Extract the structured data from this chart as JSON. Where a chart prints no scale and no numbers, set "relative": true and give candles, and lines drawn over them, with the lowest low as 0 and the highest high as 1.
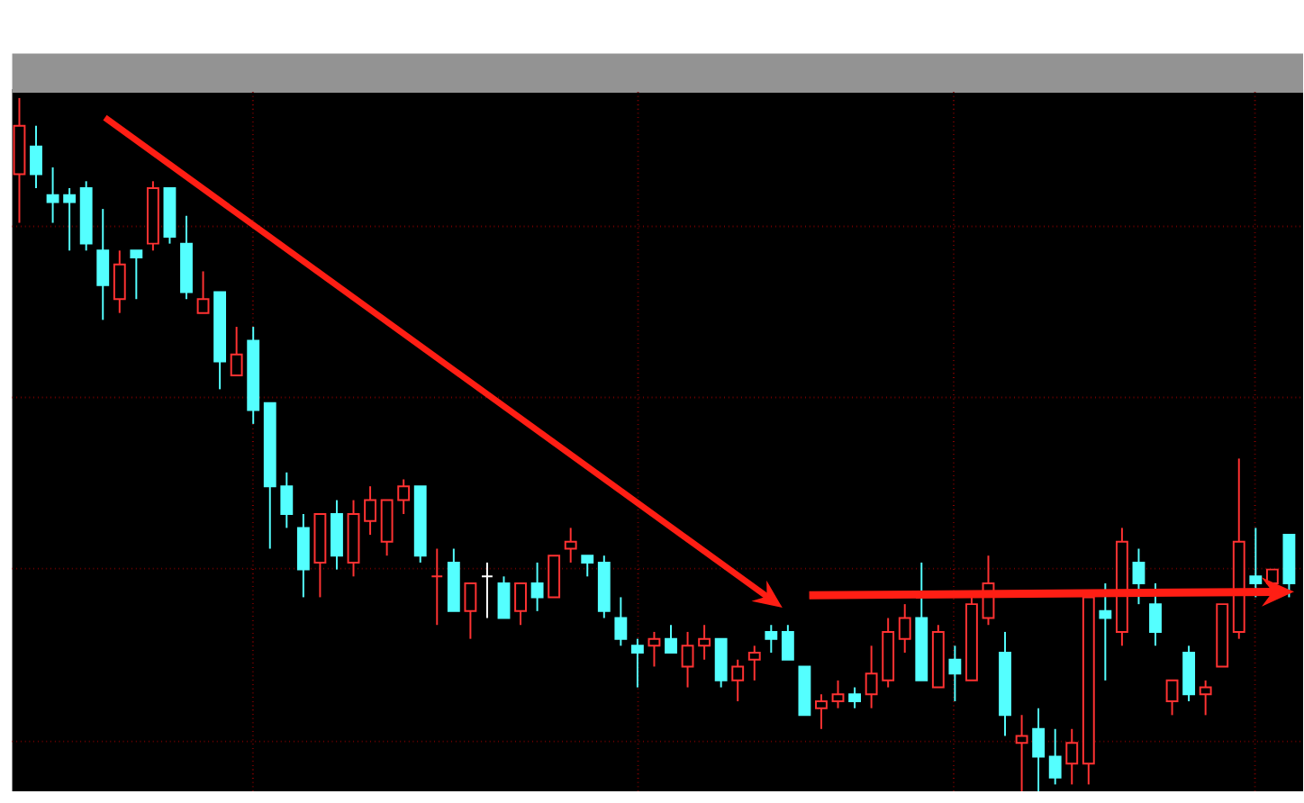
{
  "chart_data": {
    "type": "candlestick",
    "relative": true,
    "grid": true,
    "categories": [
      null,
      null,
      null,
      null,
      null,
      null,
      null,
      null,
      null,
      null,
      null,
      null,
      null,
      null,
      null,
      null,
      null,
      null,
      null,
      null,
      null,
      null,
      null,
      null,
      null,
      null,
      null,
      null,
      null,
      null,
      null,
      null,
      null,
      null,
      null,
      null,
      null,
      null,
      null,
      null,
      null,
      null,
      null,
      null,
      null,
      null,
      null,
      null,
      null,
      null,
      null,
      null,
      null,
      null,
      null,
      null,
      null,
      null,
      null,
      null,
      null,
      null,
      null,
      null,
      null,
      null,
      null,
      null,
      null,
      null,
      null,
      null,
      null,
      null,
      null,
      null,
      null
    ],
    "ohlc": [
      [
        0.89,
        1.0,
        0.82,
        0.96
      ],
      [
        0.93,
        0.96,
        0.87,
        0.89
      ],
      [
        0.86,
        0.9,
        0.82,
        0.85
      ],
      [
        0.86,
        0.87,
        0.78,
        0.85
      ],
      [
        0.87,
        0.88,
        0.78,
        0.79
      ],
      [
        0.78,
        0.84,
        0.68,
        0.73
      ],
      [
        0.71,
        0.78,
        0.69,
        0.76
      ],
      [
        0.78,
        0.78,
        0.71,
        0.77
      ],
      [
        0.79,
        0.88,
        0.78,
        0.87
      ],
      [
        0.87,
        0.87,
        0.79,
        0.8
      ],
      [
        0.79,
        0.83,
        0.71,
        0.72
      ],
      [
        0.69,
        0.75,
        0.69,
        0.71
      ],
      [
        0.72,
        0.72,
        0.58,
        0.62
      ],
      [
        0.6,
        0.67,
        0.6,
        0.63
      ],
      [
        0.65,
        0.67,
        0.53,
        0.55
      ],
      [
        0.56,
        0.56,
        0.35,
        0.44
      ],
      [
        0.44,
        0.46,
        0.38,
        0.4
      ],
      [
        0.38,
        0.4,
        0.28,
        0.32
      ],
      [
        0.33,
        0.4,
        0.28,
        0.4
      ],
      [
        0.4,
        0.42,
        0.32,
        0.34
      ],
      [
        0.33,
        0.42,
        0.31,
        0.4
      ],
      [
        0.39,
        0.44,
        0.37,
        0.42
      ],
      [
        0.36,
        0.42,
        0.34,
        0.42
      ],
      [
        0.42,
        0.45,
        0.4,
        0.44
      ],
      [
        0.44,
        0.44,
        0.33,
        0.34
      ],
      [
        0.31,
        0.35,
        0.24,
        0.31
      ],
      [
        0.33,
        0.35,
        0.26,
        0.26
      ],
      [
        0.26,
        0.3,
        0.22,
        0.3
      ],
      [
        0.31,
        0.33,
        0.25,
        0.31
      ],
      [
        0.3,
        0.31,
        0.25,
        0.25
      ],
      [
        0.26,
        0.3,
        0.24,
        0.3
      ],
      [
        0.3,
        0.33,
        0.26,
        0.28
      ],
      [
        0.28,
        0.34,
        0.28,
        0.34
      ],
      [
        0.35,
        0.38,
        0.33,
        0.36
      ],
      [
        0.34,
        0.34,
        0.31,
        0.33
      ],
      [
        0.33,
        0.34,
        0.25,
        0.26
      ],
      [
        0.25,
        0.28,
        0.21,
        0.22
      ],
      [
        0.21,
        0.22,
        0.15,
        0.2
      ],
      [
        0.21,
        0.23,
        0.18,
        0.22
      ],
      [
        0.22,
        0.24,
        0.2,
        0.2
      ],
      [
        0.18,
        0.23,
        0.15,
        0.21
      ],
      [
        0.21,
        0.24,
        0.19,
        0.22
      ],
      [
        0.22,
        0.22,
        0.15,
        0.16
      ],
      [
        0.16,
        0.19,
        0.13,
        0.18
      ],
      [
        0.19,
        0.21,
        0.16,
        0.2
      ],
      [
        0.23,
        0.24,
        0.2,
        0.22
      ],
      [
        0.23,
        0.24,
        0.19,
        0.19
      ],
      [
        0.18,
        0.18,
        0.11,
        0.11
      ],
      [
        0.12,
        0.14,
        0.09,
        0.13
      ],
      [
        0.13,
        0.16,
        0.12,
        0.14
      ],
      [
        0.14,
        0.15,
        0.12,
        0.13
      ],
      [
        0.14,
        0.21,
        0.12,
        0.17
      ],
      [
        0.16,
        0.25,
        0.15,
        0.23
      ],
      [
        0.22,
        0.27,
        0.2,
        0.25
      ],
      [
        0.25,
        0.33,
        0.16,
        0.16
      ],
      [
        0.15,
        0.24,
        0.15,
        0.23
      ],
      [
        0.19,
        0.21,
        0.13,
        0.17
      ],
      [
        0.16,
        0.28,
        0.16,
        0.27
      ],
      [
        0.25,
        0.34,
        0.24,
        0.3
      ],
      [
        0.2,
        0.23,
        0.08,
        0.11
      ],
      [
        0.07,
        0.11,
        0.0,
        0.08
      ],
      [
        0.09,
        0.12,
        0.0,
        0.05
      ],
      [
        0.05,
        0.09,
        0.01,
        0.02
      ],
      [
        0.04,
        0.09,
        0.01,
        0.07
      ],
      [
        0.04,
        0.28,
        0.01,
        0.28
      ],
      [
        0.26,
        0.3,
        0.16,
        0.25
      ],
      [
        0.23,
        0.38,
        0.21,
        0.36
      ],
      [
        0.33,
        0.35,
        0.27,
        0.3
      ],
      [
        0.27,
        0.3,
        0.21,
        0.23
      ],
      [
        0.13,
        0.16,
        0.11,
        0.16
      ],
      [
        0.2,
        0.21,
        0.13,
        0.14
      ],
      [
        0.14,
        0.16,
        0.11,
        0.15
      ],
      [
        0.18,
        0.27,
        0.18,
        0.27
      ],
      [
        0.23,
        0.48,
        0.22,
        0.36
      ],
      [
        0.31,
        0.38,
        0.28,
        0.3
      ],
      [
        0.3,
        0.32,
        0.3,
        0.32
      ],
      [
        0.37,
        0.37,
        0.28,
        0.3
      ]
    ],
    "colors": [
      "#ff3232",
      "#54ffff",
      "#54ffff",
      "#54ffff",
      "#54ffff",
      "#54ffff",
      "#ff3232",
      "#54ffff",
      "#ff3232",
      "#54ffff",
      "#54ffff",
      "#ff3232",
      "#54ffff",
      "#ff3232",
      "#54ffff",
      "#54ffff",
      "#54ffff",
      "#54ffff",
      "#ff3232",
      "#54ffff",
      "#ff3232",
      "#ff3232",
      "#ff3232",
      "#ff3232",
      "#54ffff",
      "#ff3232",
      "#54ffff",
      "#ff3232",
      "#ffffff",
      "#54ffff",
      "#ff3232",
      "#54ffff",
      "#ff3232",
      "#ff3232",
      "#54ffff",
      "#54ffff",
      "#54ffff",
      "#54ffff",
      "#ff3232",
      "#54ffff",
      "#ff3232",
      "#ff3232",
      "#54ffff",
      "#ff3232",
      "#ff3232",
      "#54ffff",
      "#54ffff",
      "#54ffff",
      "#ff3232",
      "#ff3232",
      "#54ffff",
      "#ff3232",
      "#ff3232",
      "#ff3232",
      "#54ffff",
      "#ff3232",
      "#54ffff",
      "#ff3232",
      "#ff3232",
      "#54ffff",
      "#ff3232",
      "#54ffff",
      "#54ffff",
      "#ff3232",
      "#ff3232",
      "#54ffff",
      "#ff3232",
      "#54ffff",
      "#54ffff",
      "#ff3232",
      "#54ffff",
      "#ff3232",
      "#ff3232",
      "#ff3232",
      "#54ffff",
      "#ff3232",
      "#54ffff"
    ]
  }
}
